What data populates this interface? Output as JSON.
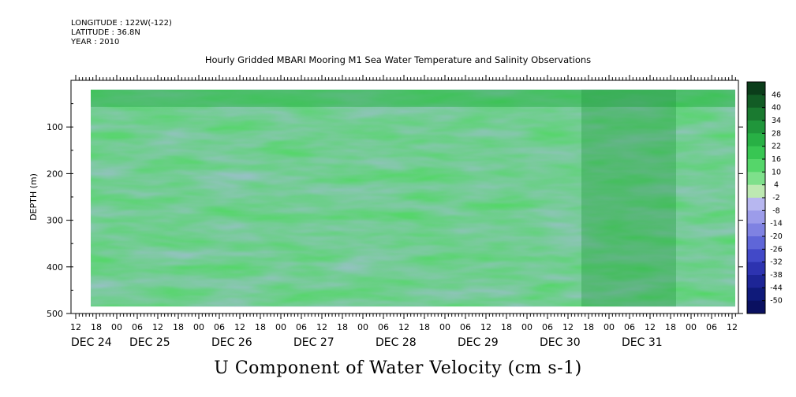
{
  "header": {
    "longitude": "LONGITUDE : 122W(-122)",
    "latitude": "LATITUDE : 36.8N",
    "year": "YEAR : 2010"
  },
  "chart_data": {
    "type": "heatmap",
    "title": "Hourly Gridded MBARI Mooring M1 Sea Water Temperature and Salinity Observations",
    "variable_title": "U Component of Water Velocity (cm s-1)",
    "ylabel": "DEPTH (m)",
    "ylim": [
      500,
      0
    ],
    "y_ticks": [
      100,
      200,
      300,
      400,
      500
    ],
    "x_hour_ticks": [
      "12",
      "18",
      "00",
      "06",
      "12",
      "18",
      "00",
      "06",
      "12",
      "18",
      "00",
      "06",
      "12",
      "18",
      "00",
      "06",
      "12",
      "18",
      "00",
      "06",
      "12",
      "18",
      "00",
      "06",
      "12",
      "18",
      "00",
      "06",
      "12",
      "18",
      "00",
      "06",
      "12"
    ],
    "x_day_labels": [
      "DEC 24",
      "DEC 25",
      "DEC 26",
      "DEC 27",
      "DEC 28",
      "DEC 29",
      "DEC 30",
      "DEC 31"
    ],
    "colorbar_labels": [
      "46",
      "40",
      "34",
      "28",
      "22",
      "16",
      "10",
      "4",
      "-2",
      "-8",
      "-14",
      "-20",
      "-26",
      "-32",
      "-38",
      "-44",
      "-50"
    ],
    "colorbar_colors": [
      "#0b3d1a",
      "#125c25",
      "#1a7a30",
      "#20963b",
      "#28b045",
      "#38c653",
      "#55d66a",
      "#7ee08b",
      "#bde9b2",
      "#b7b7f0",
      "#9c9cea",
      "#7f82e2",
      "#5f66d8",
      "#4249c8",
      "#2d33b0",
      "#1d2596",
      "#0f1a7a",
      "#0a1060"
    ],
    "data_extent": {
      "depth_top": 20,
      "depth_bottom": 485
    },
    "grid": false,
    "legend": "right"
  }
}
